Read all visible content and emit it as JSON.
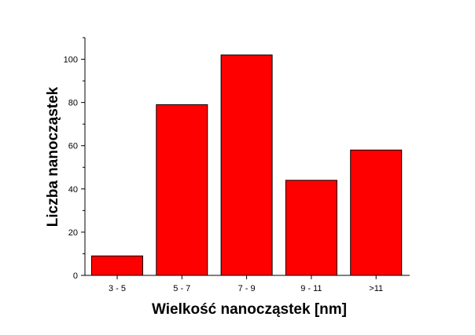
{
  "chart_data": {
    "type": "bar",
    "title": "",
    "xlabel": "Wielkość nanocząstek [nm]",
    "ylabel": "Liczba nanocząstek",
    "categories": [
      "3 - 5",
      "5 - 7",
      "7 - 9",
      "9 - 11",
      ">11"
    ],
    "values": [
      9,
      79,
      102,
      44,
      58
    ],
    "ylim": [
      0,
      110
    ],
    "yticks": [
      0,
      20,
      40,
      60,
      80,
      100
    ],
    "ytick_labels": [
      "0",
      "20",
      "40",
      "60",
      "80",
      "100"
    ],
    "grid": false,
    "legend": "none",
    "bar_color": "#ff0000",
    "bar_edge_color": "#000000"
  }
}
